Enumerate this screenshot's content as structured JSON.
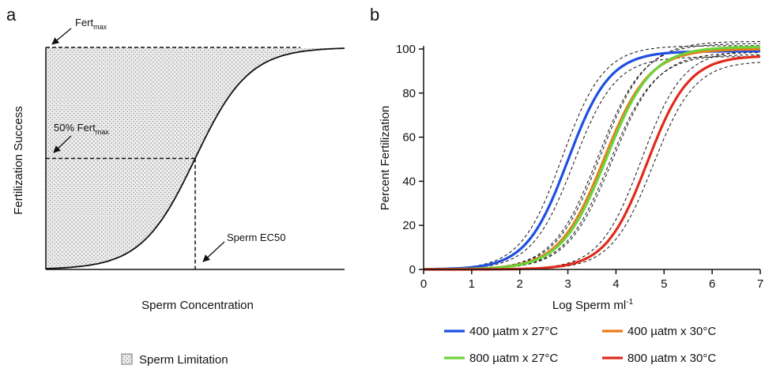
{
  "panel_a": {
    "letter": "a",
    "ylabel": "Fertilization Success",
    "xlabel": "Sperm Concentration",
    "annotations": {
      "fertmax_prefix": "Fert",
      "fertmax_sub": "max",
      "half_prefix": "50% Fert",
      "half_sub": "max",
      "ec50": "Sperm EC50"
    },
    "legend": {
      "label": "Sperm Limitation"
    }
  },
  "panel_b": {
    "letter": "b",
    "ylabel": "Percent Fertilization",
    "xlabel_main": "Log Sperm ml",
    "xlabel_sup": "-1"
  },
  "chart_data": [
    {
      "type": "line",
      "panel": "a",
      "title": "",
      "xlabel": "Sperm Concentration",
      "ylabel": "Fertilization Success",
      "series": [
        {
          "name": "",
          "model": "sigmoid",
          "top": 1.0,
          "ec50": 0.5
        }
      ],
      "reference_lines": [
        "Fertmax",
        "50% Fertmax",
        "Sperm EC50"
      ],
      "shaded_region": "Sperm Limitation",
      "ticks": "none",
      "grid": false
    },
    {
      "type": "line",
      "panel": "b",
      "title": "",
      "xlabel": "Log Sperm ml-1",
      "ylabel": "Percent Fertilization",
      "xlim": [
        0,
        7
      ],
      "ylim": [
        0,
        100
      ],
      "xticks": [
        0,
        1,
        2,
        3,
        4,
        5,
        6,
        7
      ],
      "yticks": [
        0,
        20,
        40,
        60,
        80,
        100
      ],
      "grid": false,
      "legend_position": "bottom",
      "confidence_bands": "dashed black",
      "series": [
        {
          "name": "400 µatm x 27°C",
          "color": "#1f4fe0",
          "ec50": 3.0,
          "top": 99,
          "hill": 2.0,
          "x": [
            0,
            1,
            2,
            2.5,
            3,
            3.5,
            4,
            5,
            6,
            7
          ],
          "y": [
            0,
            1,
            9,
            25,
            50,
            75,
            89,
            97,
            98.5,
            99
          ]
        },
        {
          "name": "400 µatm x 30°C",
          "color": "#ec7a1c",
          "ec50": 3.75,
          "top": 100,
          "hill": 1.85,
          "x": [
            0,
            1,
            2,
            3,
            3.5,
            3.75,
            4,
            4.5,
            5,
            6,
            7
          ],
          "y": [
            0,
            0,
            3,
            19,
            37,
            50,
            62,
            80,
            90,
            97,
            99.5
          ]
        },
        {
          "name": "800 µatm x 27°C",
          "color": "#6cd33a",
          "ec50": 3.8,
          "top": 101,
          "hill": 1.85,
          "x": [
            0,
            1,
            2,
            3,
            3.5,
            3.8,
            4,
            4.5,
            5,
            6,
            7
          ],
          "y": [
            0,
            0,
            3,
            17,
            35,
            50,
            60,
            79,
            90,
            98,
            100.5
          ]
        },
        {
          "name": "800 µatm x 30°C",
          "color": "#e02a1c",
          "ec50": 4.65,
          "top": 97,
          "hill": 2.0,
          "x": [
            0,
            1,
            2,
            3,
            4,
            4.65,
            5,
            5.5,
            6,
            7
          ],
          "y": [
            0,
            0,
            0.5,
            4,
            23,
            48,
            64,
            84,
            92,
            96
          ]
        }
      ]
    }
  ]
}
